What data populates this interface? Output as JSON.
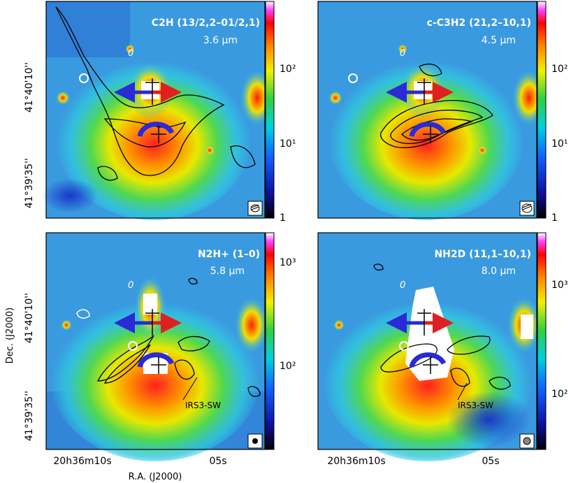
{
  "figure": {
    "xlabel": "R.A. (J2000)",
    "ylabel": "Dec. (J2000)",
    "ra_ticks": [
      "20h36m10s",
      "05s"
    ],
    "dec_ticks_top": [
      "41°40'10''",
      "41°39'35''"
    ],
    "dec_ticks_bottom": [
      "41°40'10''",
      "41°39'35''"
    ]
  },
  "panels": [
    {
      "molecule": "C2H (13/2,2–01/2,1)",
      "wavelength": "3.6 μm",
      "colorbar_ticks": [
        "10²",
        "10¹",
        "1"
      ],
      "zero_label": "0",
      "source_label": ""
    },
    {
      "molecule": "c-C3H2 (21,2–10,1)",
      "wavelength": "4.5 μm",
      "colorbar_ticks": [
        "10²",
        "10¹",
        "1"
      ],
      "zero_label": "0",
      "source_label": ""
    },
    {
      "molecule": "N2H+ (1–0)",
      "wavelength": "5.8 μm",
      "colorbar_ticks": [
        "10³",
        "10²"
      ],
      "zero_label": "0",
      "source_label": "IRS3-SW"
    },
    {
      "molecule": "NH2D (11,1–10,1)",
      "wavelength": "8.0 μm",
      "colorbar_ticks": [
        "10³",
        "10²"
      ],
      "zero_label": "0",
      "source_label": "IRS3-SW"
    }
  ],
  "colors": {
    "background_map": "#2a8ad8",
    "outflow_blue": "#2a2ad8",
    "outflow_red": "#e02020",
    "contour": "#000000"
  }
}
